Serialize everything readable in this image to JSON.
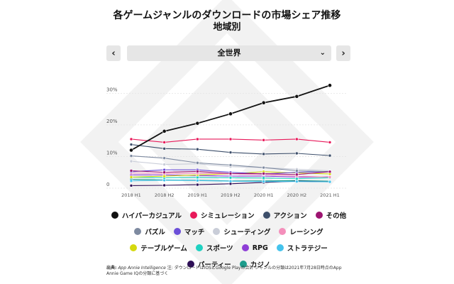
{
  "header": {
    "title": "各ゲームジャンルのダウンロードの市場シェア推移",
    "subtitle": "地域別"
  },
  "region_nav": {
    "prev_icon": "chevron-left-icon",
    "next_icon": "chevron-right-icon",
    "selected": "全世界",
    "prev_glyph": "‹",
    "next_glyph": "›",
    "dropdown_glyph": "⌄"
  },
  "chart_data": {
    "type": "line",
    "x": [
      "2018 H1",
      "2018 H2",
      "2019 H1",
      "2019 H2",
      "2020 H1",
      "2020 H2",
      "2021 H1"
    ],
    "y_ticks": [
      "0",
      "10%",
      "20%",
      "30%"
    ],
    "ylim": [
      0,
      33
    ],
    "grid": true,
    "legend_position": "bottom",
    "series": [
      {
        "name": "ハイパーカジュアル",
        "color": "#111111",
        "values": [
          12,
          18,
          20.5,
          23.5,
          27,
          29,
          32.5
        ]
      },
      {
        "name": "シミュレーション",
        "color": "#e8195a",
        "values": [
          15.5,
          14.5,
          15.5,
          15.5,
          15.2,
          15.5,
          14.5
        ]
      },
      {
        "name": "アクション",
        "color": "#3d4f6b",
        "values": [
          13.8,
          12.5,
          12.3,
          11.3,
          10.8,
          11.0,
          10.3
        ]
      },
      {
        "name": "その他",
        "color": "#9c1470",
        "values": [
          5.5,
          5.0,
          5.3,
          4.6,
          4.6,
          4.3,
          5.2
        ]
      },
      {
        "name": "パズル",
        "color": "#7e8aa0",
        "values": [
          10.2,
          9.5,
          8.0,
          7.3,
          6.5,
          5.5,
          5.2
        ]
      },
      {
        "name": "マッチ",
        "color": "#6b4fd8",
        "values": [
          5.2,
          5.8,
          5.8,
          5.0,
          4.5,
          5.0,
          5.3
        ]
      },
      {
        "name": "シューティング",
        "color": "#c9cdd8",
        "values": [
          8.5,
          7.5,
          7.7,
          6.8,
          6.5,
          6.0,
          5.5
        ]
      },
      {
        "name": "レーシング",
        "color": "#f48fbb",
        "values": [
          4.8,
          4.6,
          4.7,
          4.5,
          4.3,
          3.8,
          3.5
        ]
      },
      {
        "name": "テーブルゲーム",
        "color": "#d5d90f",
        "values": [
          3.5,
          3.8,
          4.2,
          4.5,
          5.2,
          4.8,
          4.5
        ]
      },
      {
        "name": "スポーツ",
        "color": "#1fd1c1",
        "values": [
          3.5,
          3.3,
          3.4,
          3.3,
          3.2,
          3.0,
          3.3
        ]
      },
      {
        "name": "RPG",
        "color": "#8e3ed6",
        "values": [
          4.2,
          4.2,
          4.0,
          3.8,
          3.8,
          3.5,
          3.6
        ]
      },
      {
        "name": "ストラテジー",
        "color": "#45c3ec",
        "values": [
          2.3,
          2.5,
          2.4,
          2.2,
          2.1,
          2.1,
          2.0
        ]
      },
      {
        "name": "パーティー",
        "color": "#2e0f57",
        "values": [
          0.8,
          0.9,
          1.1,
          1.4,
          1.8,
          2.2,
          2.0
        ]
      },
      {
        "name": "カジノ",
        "color": "#1c9c8c",
        "values": [
          2.8,
          2.6,
          2.5,
          2.3,
          2.3,
          2.4,
          2.2
        ]
      }
    ]
  },
  "source": {
    "label": "出典:",
    "provider": "App Annie Intelligence",
    "note": " 注: ダウンロードはiOSとGoogle Playの合計 ジャンルの分類は2021年7月28日時点のApp Annie Game IQの分類に基づく"
  }
}
